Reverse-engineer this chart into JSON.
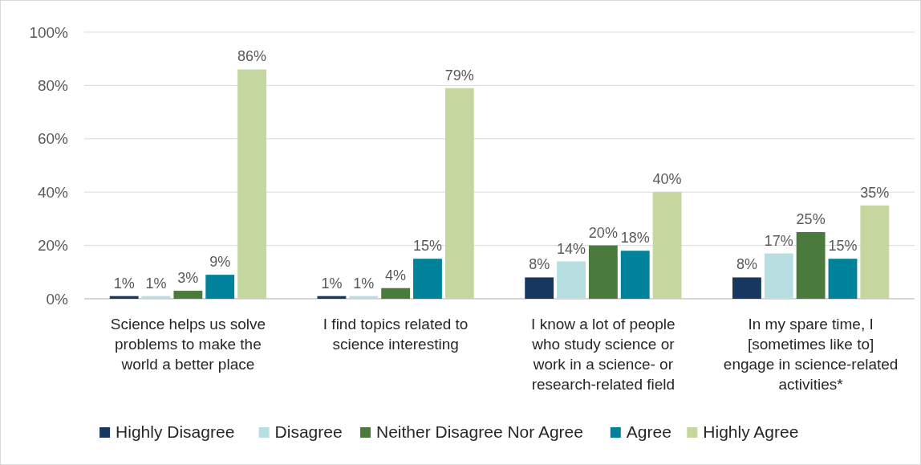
{
  "chart_data": {
    "type": "bar",
    "categories": [
      "Science helps us solve\nproblems to make the\nworld a better place",
      "I find topics related to\nscience interesting",
      "I know a lot of people\nwho study science or\nwork in a science- or\nresearch-related field",
      "In my spare time, I\n[sometimes like to]\nengage in science-related\nactivities*"
    ],
    "series": [
      {
        "name": "Highly Disagree",
        "color": "#17375e",
        "values": [
          1,
          1,
          8,
          8
        ],
        "value_labels": [
          "1%",
          "1%",
          "8%",
          "8%"
        ]
      },
      {
        "name": "Disagree",
        "color": "#b7dee1",
        "values": [
          1,
          1,
          14,
          17
        ],
        "value_labels": [
          "1%",
          "1%",
          "14%",
          "17%"
        ]
      },
      {
        "name": "Neither Disagree Nor Agree",
        "color": "#4a7b3c",
        "values": [
          3,
          4,
          20,
          25
        ],
        "value_labels": [
          "3%",
          "4%",
          "20%",
          "25%"
        ]
      },
      {
        "name": "Agree",
        "color": "#00829a",
        "values": [
          9,
          15,
          18,
          15
        ],
        "value_labels": [
          "9%",
          "15%",
          "18%",
          "15%"
        ]
      },
      {
        "name": "Highly Agree",
        "color": "#c4d79f",
        "values": [
          86,
          79,
          40,
          35
        ],
        "value_labels": [
          "86%",
          "79%",
          "40%",
          "35%"
        ]
      }
    ],
    "ylim": [
      0,
      100
    ],
    "yticks": [
      {
        "value": 0,
        "label": "0%"
      },
      {
        "value": 20,
        "label": "20%"
      },
      {
        "value": 40,
        "label": "40%"
      },
      {
        "value": 60,
        "label": "60%"
      },
      {
        "value": 80,
        "label": "80%"
      },
      {
        "value": 100,
        "label": "100%"
      }
    ],
    "grid": "y",
    "legend": "bottom"
  }
}
